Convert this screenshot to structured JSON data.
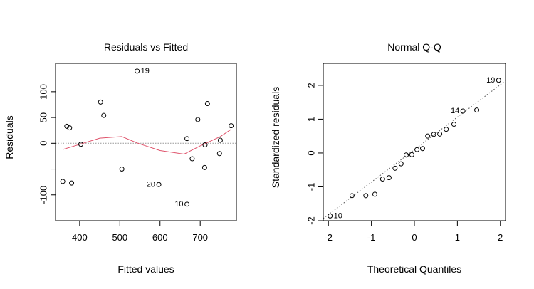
{
  "chart_data": [
    {
      "type": "scatter",
      "title": "Residuals vs Fitted",
      "xlabel": "Fitted values",
      "ylabel": "Residuals",
      "xlim": [
        340,
        790
      ],
      "ylim": [
        -150,
        155
      ],
      "xticks": [
        400,
        500,
        600,
        700
      ],
      "yticks": [
        -100,
        -50,
        0,
        50,
        100
      ],
      "ytick_labels": [
        "-100",
        "",
        "0",
        "50",
        "100"
      ],
      "reference_line": {
        "y": 0,
        "style": "dotted",
        "color": "#999999"
      },
      "points": [
        {
          "x": 358,
          "y": -74
        },
        {
          "x": 368,
          "y": 33
        },
        {
          "x": 375,
          "y": 30
        },
        {
          "x": 380,
          "y": -77
        },
        {
          "x": 403,
          "y": -2
        },
        {
          "x": 452,
          "y": 80
        },
        {
          "x": 460,
          "y": 54
        },
        {
          "x": 505,
          "y": -50
        },
        {
          "x": 543,
          "y": 140,
          "label": "19"
        },
        {
          "x": 597,
          "y": -80,
          "label": "20"
        },
        {
          "x": 667,
          "y": -118,
          "label": "10"
        },
        {
          "x": 667,
          "y": 9
        },
        {
          "x": 680,
          "y": -30
        },
        {
          "x": 694,
          "y": 46
        },
        {
          "x": 711,
          "y": -47
        },
        {
          "x": 712,
          "y": -3
        },
        {
          "x": 718,
          "y": 77
        },
        {
          "x": 748,
          "y": -20
        },
        {
          "x": 750,
          "y": 6
        },
        {
          "x": 777,
          "y": 34
        }
      ],
      "smooth": {
        "color": "#DF536B",
        "x": [
          358,
          400,
          450,
          505,
          545,
          600,
          660,
          700,
          750,
          777
        ],
        "y": [
          -12,
          -2,
          10,
          13,
          0,
          -14,
          -21,
          -5,
          13,
          27
        ]
      }
    },
    {
      "type": "scatter",
      "title": "Normal Q-Q",
      "xlabel": "Theoretical Quantiles",
      "ylabel": "Standardized residuals",
      "xlim": [
        -2.12,
        2.12
      ],
      "ylim": [
        -2.0,
        2.65
      ],
      "xticks": [
        -2,
        -1,
        0,
        1,
        2
      ],
      "yticks": [
        -2,
        -1,
        0,
        1,
        2
      ],
      "reference_line": {
        "intercept": 0.1,
        "slope": 0.96,
        "style": "dotted",
        "color": "#555555"
      },
      "points": [
        {
          "x": -1.96,
          "y": -1.86,
          "label": "10"
        },
        {
          "x": -1.45,
          "y": -1.26
        },
        {
          "x": -1.13,
          "y": -1.26
        },
        {
          "x": -0.92,
          "y": -1.22
        },
        {
          "x": -0.74,
          "y": -0.77
        },
        {
          "x": -0.59,
          "y": -0.73
        },
        {
          "x": -0.45,
          "y": -0.45
        },
        {
          "x": -0.31,
          "y": -0.32
        },
        {
          "x": -0.19,
          "y": -0.06
        },
        {
          "x": -0.06,
          "y": -0.05
        },
        {
          "x": 0.06,
          "y": 0.1
        },
        {
          "x": 0.19,
          "y": 0.13
        },
        {
          "x": 0.31,
          "y": 0.5
        },
        {
          "x": 0.45,
          "y": 0.55
        },
        {
          "x": 0.59,
          "y": 0.56
        },
        {
          "x": 0.74,
          "y": 0.7
        },
        {
          "x": 0.92,
          "y": 0.85
        },
        {
          "x": 1.13,
          "y": 1.24,
          "label": "14"
        },
        {
          "x": 1.45,
          "y": 1.27
        },
        {
          "x": 1.96,
          "y": 2.15,
          "label": "19"
        }
      ]
    }
  ]
}
